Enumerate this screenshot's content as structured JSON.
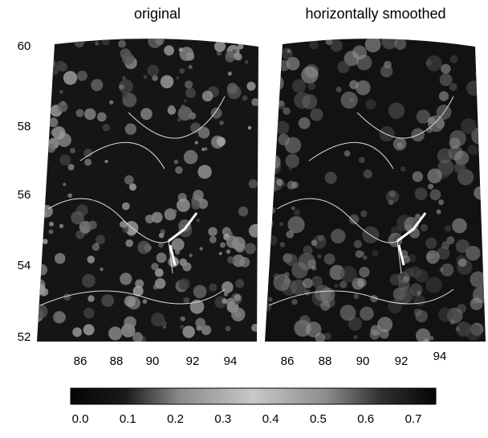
{
  "panels": [
    {
      "title": "original"
    },
    {
      "title": "horizontally smoothed"
    }
  ],
  "latitude_labels": [
    60,
    58,
    56,
    54,
    52
  ],
  "longitude_labels": [
    86,
    88,
    90,
    92,
    94
  ],
  "colorbar": {
    "ticks": [
      {
        "value": 0,
        "label": "0.0"
      },
      0.1,
      0.2,
      0.3,
      0.4,
      0.5,
      0.6,
      0.7
    ]
  }
}
